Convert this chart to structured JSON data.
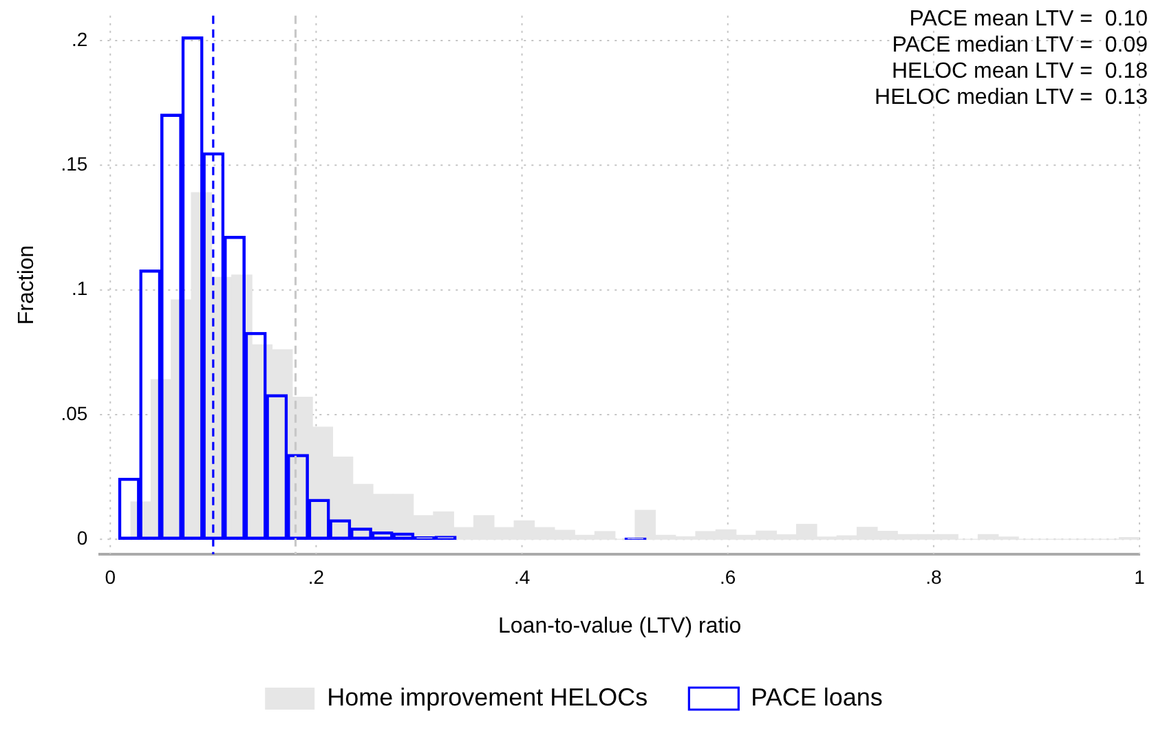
{
  "chart_data": {
    "type": "bar",
    "xlabel": "Loan-to-value (LTV) ratio",
    "ylabel": "Fraction",
    "xlim": [
      -0.01,
      1
    ],
    "xticks": [
      0,
      {
        "value": 0.2,
        "label": ".2"
      },
      {
        "value": 0.4,
        "label": ".4"
      },
      {
        "value": 0.6,
        "label": ".6"
      },
      {
        "value": 0.8,
        "label": ".8"
      },
      1
    ],
    "ylim": [
      -0.006,
      0.21
    ],
    "yticks": [
      0,
      {
        "value": 0.05,
        "label": ".05"
      },
      {
        "value": 0.1,
        "label": ".1"
      },
      {
        "value": 0.15,
        "label": ".15"
      },
      {
        "value": 0.2,
        "label": ".2"
      }
    ],
    "grid": true,
    "legend": "bottom",
    "series": [
      {
        "name": "Home improvement HELOCs",
        "color": "#e6e6e6",
        "x": [
          0.0298,
          0.0494,
          0.069,
          0.0886,
          0.1082,
          0.1278,
          0.1474,
          0.167,
          0.1866,
          0.2062,
          0.2258,
          0.2454,
          0.265,
          0.2846,
          0.3042,
          0.3238,
          0.3434,
          0.363,
          0.3826,
          0.4022,
          0.4218,
          0.4414,
          0.461,
          0.4806,
          0.5002,
          0.5198,
          0.5394,
          0.559,
          0.5786,
          0.5982,
          0.6178,
          0.6374,
          0.657,
          0.6766,
          0.6962,
          0.7158,
          0.7354,
          0.755,
          0.7746,
          0.7942,
          0.8138,
          0.8334,
          0.853,
          0.8726,
          0.8922,
          0.9118,
          0.9314,
          0.951,
          0.9706,
          0.9902
        ],
        "values": [
          0.015,
          0.064,
          0.096,
          0.139,
          0.105,
          0.106,
          0.078,
          0.076,
          0.057,
          0.045,
          0.033,
          0.022,
          0.018,
          0.018,
          0.0095,
          0.011,
          0.0047,
          0.0095,
          0.0047,
          0.0074,
          0.0047,
          0.0036,
          0.0016,
          0.0031,
          0,
          0.0116,
          0.0016,
          0.001,
          0.0031,
          0.0038,
          0.0016,
          0.0033,
          0.0018,
          0.006,
          0.0009,
          0.0014,
          0.0048,
          0.0032,
          0.0019,
          0.0019,
          0.0019,
          0,
          0.0019,
          0.0009,
          0,
          0,
          0,
          0,
          0,
          0.0007
        ]
      },
      {
        "name": "PACE loans",
        "color": "#0000ff",
        "x": [
          0.0183,
          0.0388,
          0.0593,
          0.0798,
          0.1003,
          0.1208,
          0.1413,
          0.1618,
          0.1823,
          0.2028,
          0.2233,
          0.2438,
          0.2643,
          0.2848,
          0.3053,
          0.3258,
          0.3463,
          0.3668,
          0.3873,
          0.4078,
          0.4283,
          0.4488,
          0.4693,
          0.4898,
          0.5103
        ],
        "values": [
          0.0245,
          0.108,
          0.1705,
          0.2015,
          0.155,
          0.1215,
          0.083,
          0.058,
          0.034,
          0.016,
          0.0078,
          0.0045,
          0.003,
          0.0025,
          0.001,
          0.0012,
          0,
          0,
          0,
          0,
          0,
          0,
          0,
          0,
          0.0005
        ]
      }
    ],
    "ref_lines": [
      {
        "axis": "x",
        "value": 0.1,
        "color": "#0000ff",
        "line_style": "dashed"
      },
      {
        "axis": "x",
        "value": 0.18,
        "color": "#c8c8c8",
        "line_style": "dashed"
      }
    ],
    "annotations": [
      "PACE mean LTV =  0.10",
      "PACE median LTV =  0.09",
      "HELOC mean LTV =  0.18",
      "HELOC median LTV =  0.13"
    ]
  }
}
